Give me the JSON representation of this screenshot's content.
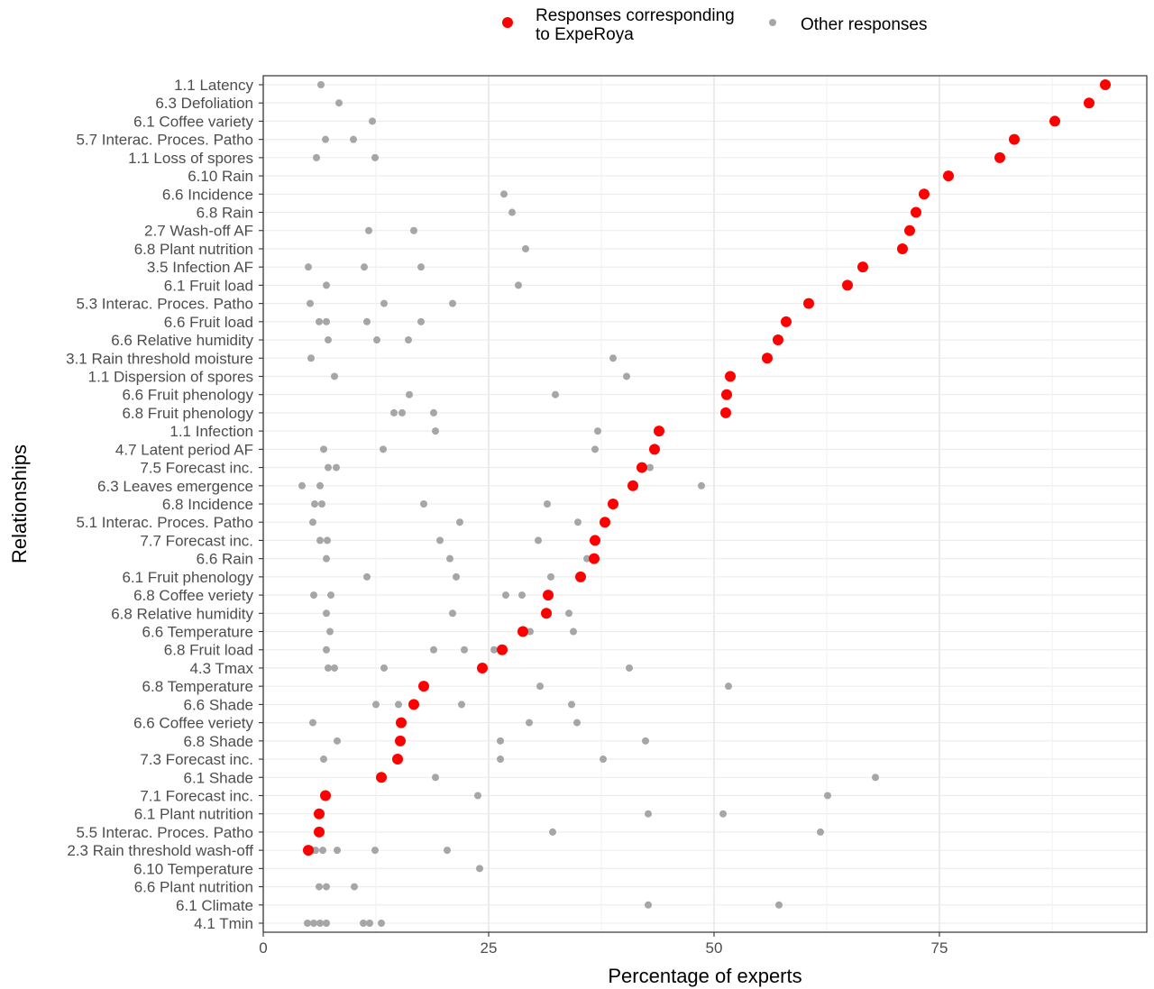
{
  "chart_data": {
    "type": "scatter",
    "xlabel": "Percentage of experts",
    "ylabel": "Relationships",
    "xlim": [
      0,
      98
    ],
    "x_ticks": [
      0,
      25,
      50,
      75
    ],
    "grid": true,
    "legend_position": "top",
    "colors": {
      "experoya": "#ff0000",
      "other": "#a6a6a6"
    },
    "legend": [
      {
        "key": "experoya",
        "label_lines": [
          "Responses corresponding",
          "to ExpeRoya"
        ]
      },
      {
        "key": "other",
        "label_lines": [
          "Other responses"
        ]
      }
    ],
    "categories": [
      "1.1 Latency",
      "6.3 Defoliation",
      "6.1 Coffee variety",
      "5.7 Interac. Proces. Patho",
      "1.1 Loss of spores",
      "6.10 Rain",
      "6.6 Incidence",
      "6.8 Rain",
      "2.7 Wash-off AF",
      "6.8 Plant nutrition",
      "3.5 Infection AF",
      "6.1 Fruit load",
      "5.3 Interac. Proces. Patho",
      "6.6 Fruit load",
      "6.6 Relative humidity",
      "3.1 Rain threshold moisture",
      "1.1 Dispersion of spores",
      "6.6 Fruit phenology",
      "6.8 Fruit phenology",
      "1.1 Infection",
      "4.7 Latent period AF",
      "7.5 Forecast inc.",
      "6.3 Leaves emergence",
      "6.8 Incidence",
      "5.1 Interac. Proces. Patho",
      "7.7 Forecast inc.",
      "6.6 Rain",
      "6.1 Fruit phenology",
      "6.8 Coffee veriety",
      "6.8 Relative humidity",
      "6.6 Temperature",
      "6.8 Fruit load",
      "4.3 Tmax",
      "6.8 Temperature",
      "6.6 Shade",
      "6.6 Coffee veriety",
      "6.8 Shade",
      "7.3 Forecast inc.",
      "6.1 Shade",
      "7.1 Forecast inc.",
      "6.1 Plant nutrition",
      "5.5 Interac. Proces. Patho",
      "2.3 Rain threshold wash-off",
      "6.10 Temperature",
      "6.6 Plant nutrition",
      "6.1 Climate",
      "4.1 Tmin"
    ],
    "experoya": [
      93.4,
      91.6,
      87.8,
      83.3,
      81.7,
      76.0,
      73.3,
      72.4,
      71.7,
      70.9,
      66.5,
      64.8,
      60.5,
      58.0,
      57.1,
      55.9,
      51.8,
      51.4,
      51.3,
      43.9,
      43.4,
      42.0,
      41.0,
      38.8,
      37.9,
      36.8,
      36.7,
      35.2,
      31.6,
      31.4,
      28.8,
      26.5,
      24.3,
      17.8,
      16.7,
      15.3,
      15.2,
      14.9,
      13.1,
      6.9,
      6.2,
      6.2,
      5.0,
      null,
      null,
      null,
      null
    ],
    "other": [
      [
        6.4
      ],
      [
        8.4
      ],
      [
        12.1
      ],
      [
        6.9,
        10.0
      ],
      [
        5.9,
        12.4
      ],
      [],
      [
        26.7
      ],
      [
        27.6
      ],
      [
        11.7,
        16.7
      ],
      [
        29.1
      ],
      [
        5.0,
        11.2,
        17.5
      ],
      [
        7.0,
        28.3
      ],
      [
        5.2,
        13.4,
        21.0
      ],
      [
        6.2,
        7.0,
        11.5,
        17.5
      ],
      [
        7.2,
        12.6,
        16.1
      ],
      [
        5.3,
        38.8
      ],
      [
        7.9,
        40.3
      ],
      [
        16.2,
        32.4
      ],
      [
        14.5,
        15.4,
        18.9
      ],
      [
        19.1,
        37.1
      ],
      [
        6.7,
        13.3,
        36.8
      ],
      [
        7.2,
        8.1,
        42.9
      ],
      [
        4.3,
        6.3,
        48.6
      ],
      [
        5.7,
        6.5,
        17.8,
        31.5
      ],
      [
        5.5,
        21.8,
        34.9
      ],
      [
        6.3,
        7.1,
        19.6,
        30.5
      ],
      [
        7.0,
        20.7,
        35.9
      ],
      [
        11.5,
        21.4,
        31.9
      ],
      [
        5.6,
        7.5,
        26.9,
        28.7
      ],
      [
        7.0,
        21.0,
        33.9
      ],
      [
        7.4,
        29.6,
        34.4
      ],
      [
        7.0,
        18.9,
        22.3,
        25.6
      ],
      [
        7.2,
        7.9,
        13.4,
        40.6
      ],
      [
        30.7,
        51.6
      ],
      [
        12.5,
        15.0,
        22.0,
        34.2
      ],
      [
        5.5,
        29.5,
        34.8
      ],
      [
        8.2,
        26.3,
        42.4
      ],
      [
        6.7,
        26.3,
        37.7
      ],
      [
        19.1,
        67.9
      ],
      [
        6.9,
        23.8,
        62.6
      ],
      [
        42.7,
        51.0
      ],
      [
        32.1,
        61.8
      ],
      [
        5.4,
        5.8,
        6.6,
        8.2,
        12.4,
        20.4
      ],
      [
        24.0
      ],
      [
        6.2,
        7.0,
        10.1
      ],
      [
        42.7,
        57.2
      ],
      [
        4.9,
        5.6,
        6.3,
        7.0,
        11.1,
        11.8,
        13.1
      ]
    ]
  }
}
